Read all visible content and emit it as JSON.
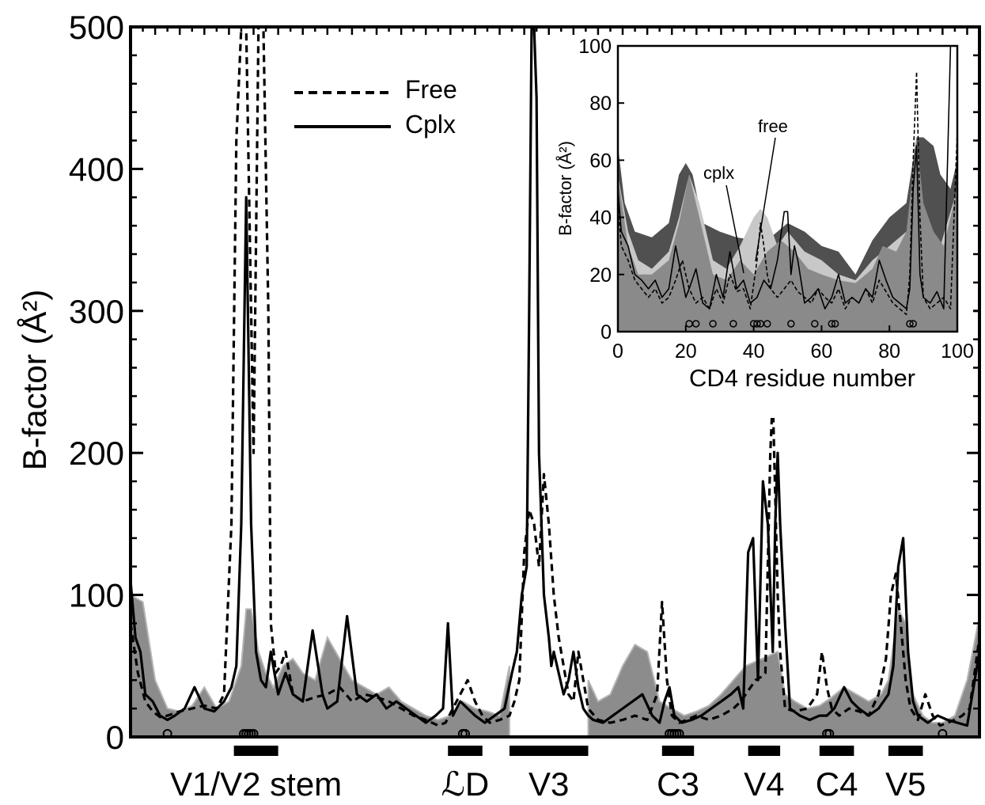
{
  "chart_data": [
    {
      "type": "line",
      "panel": "main",
      "ylabel": "B-factor (Å²)",
      "xlabel": "",
      "ylim": [
        0,
        500
      ],
      "yticks": [
        0,
        100,
        200,
        300,
        400,
        500
      ],
      "xlim": [
        0,
        345
      ],
      "legend": {
        "placement": "top-left",
        "entries": [
          {
            "label": "Free",
            "style": "dashed"
          },
          {
            "label": "Cplx",
            "style": "solid"
          }
        ]
      },
      "regions": [
        {
          "label": "V1/V2 stem",
          "x": [
            42,
            60
          ]
        },
        {
          "label": "ℒD",
          "x": [
            129,
            143
          ]
        },
        {
          "label": "V3",
          "x": [
            154,
            186
          ]
        },
        {
          "label": "C3",
          "x": [
            216,
            229
          ]
        },
        {
          "label": "V4",
          "x": [
            251,
            264
          ]
        },
        {
          "label": "C4",
          "x": [
            280,
            294
          ]
        },
        {
          "label": "V5",
          "x": [
            308,
            322
          ]
        }
      ],
      "contact_circles_x": [
        15,
        46,
        47,
        48,
        49,
        50,
        135,
        136,
        219,
        220,
        221,
        222,
        223,
        283,
        284,
        330
      ],
      "series": [
        {
          "name": "Free",
          "style": "dashed",
          "x": [
            0,
            3,
            6,
            9,
            12,
            15,
            20,
            25,
            30,
            35,
            38,
            41,
            43,
            45,
            47,
            49,
            50,
            52,
            54,
            56,
            57,
            59,
            61,
            63,
            66,
            70,
            75,
            80,
            85,
            90,
            95,
            100,
            105,
            110,
            115,
            120,
            125,
            128,
            131,
            134,
            137,
            140,
            143,
            146,
            150,
            154,
            156,
            158,
            160,
            162,
            164,
            166,
            168,
            170,
            172,
            174,
            176,
            178,
            180,
            182,
            184,
            186,
            190,
            195,
            200,
            205,
            210,
            214,
            216,
            218,
            220,
            223,
            226,
            230,
            235,
            240,
            245,
            248,
            250,
            252,
            254,
            256,
            258,
            260,
            261,
            262,
            263,
            264,
            266,
            270,
            275,
            279,
            281,
            283,
            285,
            288,
            292,
            296,
            300,
            304,
            307,
            309,
            311,
            313,
            315,
            317,
            320,
            323,
            326,
            329,
            332,
            335,
            338,
            341,
            345
          ],
          "values": [
            80,
            45,
            25,
            18,
            14,
            15,
            18,
            20,
            22,
            20,
            30,
            150,
            420,
            500,
            500,
            300,
            200,
            500,
            500,
            300,
            80,
            45,
            50,
            60,
            30,
            25,
            28,
            30,
            35,
            25,
            30,
            28,
            25,
            20,
            15,
            12,
            8,
            10,
            20,
            30,
            40,
            25,
            15,
            10,
            12,
            15,
            25,
            40,
            130,
            160,
            150,
            120,
            185,
            150,
            100,
            70,
            50,
            30,
            25,
            60,
            40,
            20,
            12,
            10,
            12,
            15,
            12,
            30,
            95,
            40,
            15,
            10,
            12,
            15,
            12,
            15,
            20,
            25,
            30,
            35,
            40,
            42,
            45,
            200,
            240,
            170,
            100,
            60,
            20,
            18,
            20,
            30,
            60,
            35,
            20,
            15,
            20,
            18,
            15,
            30,
            55,
            100,
            115,
            80,
            40,
            20,
            12,
            30,
            15,
            8,
            10,
            12,
            15,
            20,
            70
          ]
        },
        {
          "name": "Cplx",
          "style": "solid",
          "x": [
            0,
            2,
            4,
            6,
            9,
            12,
            15,
            18,
            22,
            26,
            30,
            34,
            38,
            41,
            43,
            45,
            47,
            49,
            51,
            53,
            55,
            57,
            60,
            63,
            66,
            70,
            74,
            78,
            80,
            84,
            88,
            92,
            96,
            100,
            104,
            108,
            112,
            116,
            120,
            124,
            127,
            129,
            131,
            134,
            137,
            140,
            144,
            148,
            152,
            155,
            157,
            159,
            161,
            162,
            163,
            164,
            165,
            166,
            168,
            170,
            171,
            172,
            174,
            176,
            178,
            180,
            182,
            184,
            186,
            188,
            192,
            196,
            200,
            204,
            208,
            212,
            215,
            217,
            219,
            221,
            224,
            228,
            232,
            236,
            240,
            244,
            247,
            249,
            251,
            253,
            255,
            257,
            259,
            261,
            262,
            263,
            264,
            266,
            268,
            272,
            276,
            280,
            283,
            286,
            290,
            293,
            296,
            300,
            304,
            308,
            310,
            312,
            314,
            316,
            318,
            320,
            324,
            328,
            332,
            336,
            340,
            345
          ],
          "values": [
            110,
            70,
            60,
            30,
            25,
            15,
            12,
            15,
            20,
            35,
            20,
            18,
            25,
            35,
            50,
            150,
            380,
            150,
            60,
            40,
            35,
            60,
            30,
            45,
            30,
            25,
            75,
            30,
            20,
            25,
            85,
            30,
            25,
            30,
            20,
            25,
            20,
            15,
            10,
            15,
            20,
            80,
            15,
            25,
            20,
            15,
            10,
            15,
            20,
            45,
            60,
            100,
            120,
            300,
            520,
            520,
            450,
            200,
            100,
            70,
            50,
            60,
            45,
            30,
            40,
            60,
            35,
            20,
            15,
            12,
            10,
            15,
            20,
            25,
            30,
            15,
            10,
            25,
            35,
            15,
            10,
            12,
            15,
            20,
            25,
            30,
            35,
            20,
            130,
            140,
            40,
            180,
            150,
            60,
            150,
            200,
            150,
            80,
            20,
            15,
            12,
            15,
            15,
            20,
            35,
            25,
            20,
            15,
            20,
            30,
            50,
            120,
            140,
            60,
            25,
            15,
            10,
            15,
            12,
            10,
            8,
            60
          ]
        },
        {
          "name": "",
          "style": "fill",
          "x": [
            0,
            5,
            10,
            15,
            20,
            25,
            30,
            35,
            40,
            45,
            47,
            49,
            52,
            55,
            58,
            62,
            66,
            70,
            75,
            80,
            85,
            90,
            95,
            100,
            105,
            110,
            115,
            120,
            125,
            130,
            135,
            140,
            145,
            150,
            154,
            186,
            190,
            195,
            200,
            205,
            210,
            215,
            220,
            225,
            230,
            235,
            240,
            245,
            250,
            263,
            266,
            270,
            275,
            280,
            285,
            290,
            295,
            300,
            305,
            308,
            310,
            312,
            315,
            318,
            322,
            326,
            330,
            335,
            340,
            345
          ],
          "values": [
            100,
            95,
            40,
            20,
            18,
            22,
            35,
            20,
            25,
            50,
            90,
            90,
            60,
            45,
            35,
            50,
            55,
            45,
            40,
            70,
            55,
            40,
            35,
            30,
            35,
            25,
            20,
            15,
            12,
            15,
            25,
            20,
            18,
            15,
            50,
            40,
            25,
            30,
            50,
            65,
            60,
            25,
            20,
            15,
            18,
            22,
            30,
            40,
            50,
            60,
            30,
            25,
            20,
            22,
            28,
            35,
            30,
            25,
            30,
            40,
            65,
            90,
            80,
            30,
            15,
            10,
            10,
            15,
            40,
            85
          ]
        }
      ]
    },
    {
      "type": "area",
      "panel": "inset",
      "xlabel": "CD4 residue number",
      "ylabel": "B-factor (Å²)",
      "xlim": [
        0,
        100
      ],
      "ylim": [
        0,
        100
      ],
      "xticks": [
        0,
        20,
        40,
        60,
        80,
        100
      ],
      "yticks": [
        0,
        20,
        40,
        60,
        80,
        100
      ],
      "annotations": [
        "free",
        "cplx"
      ],
      "contact_circles_x": [
        21,
        23,
        28,
        34,
        40,
        41,
        42,
        44,
        51,
        58,
        63,
        64,
        86,
        87
      ],
      "series": [
        {
          "name": "",
          "style": "dark-fill",
          "x": [
            0,
            2,
            5,
            10,
            15,
            18,
            20,
            22,
            25,
            30,
            35,
            40,
            45,
            50,
            55,
            60,
            65,
            70,
            75,
            80,
            85,
            88,
            90,
            93,
            95,
            98,
            100
          ],
          "values": [
            65,
            45,
            35,
            33,
            38,
            55,
            59,
            55,
            38,
            35,
            33,
            32,
            33,
            38,
            35,
            30,
            28,
            20,
            32,
            40,
            45,
            68,
            68,
            65,
            55,
            50,
            60
          ]
        },
        {
          "name": "",
          "style": "light-fill",
          "x": [
            0,
            3,
            6,
            10,
            15,
            18,
            21,
            24,
            28,
            32,
            36,
            40,
            42,
            44,
            47,
            50,
            55,
            60,
            65,
            70,
            75,
            80,
            85,
            88,
            91,
            95,
            100
          ],
          "values": [
            55,
            35,
            25,
            22,
            28,
            40,
            55,
            45,
            25,
            22,
            30,
            40,
            43,
            40,
            30,
            35,
            28,
            25,
            20,
            18,
            25,
            30,
            35,
            50,
            40,
            30,
            50
          ]
        },
        {
          "name": "",
          "style": "mid-fill",
          "x": [
            0,
            3,
            6,
            10,
            15,
            18,
            21,
            24,
            28,
            32,
            36,
            40,
            44,
            48,
            52,
            56,
            60,
            65,
            70,
            75,
            78,
            82,
            85,
            88,
            90,
            93,
            96,
            100
          ],
          "values": [
            55,
            30,
            20,
            20,
            25,
            38,
            55,
            40,
            20,
            18,
            25,
            20,
            28,
            32,
            28,
            22,
            20,
            18,
            17,
            22,
            30,
            28,
            35,
            68,
            45,
            35,
            30,
            50
          ]
        },
        {
          "name": "",
          "style": "dashed",
          "x": [
            0,
            1,
            3,
            5,
            7,
            9,
            11,
            13,
            15,
            17,
            19,
            21,
            23,
            25,
            27,
            29,
            31,
            33,
            35,
            37,
            39,
            41,
            42,
            43,
            44,
            45,
            47,
            49,
            51,
            53,
            55,
            57,
            59,
            61,
            63,
            65,
            67,
            69,
            71,
            73,
            75,
            77,
            79,
            81,
            83,
            85,
            86,
            87,
            88,
            89,
            90,
            92,
            94,
            96,
            98,
            100
          ],
          "values": [
            45,
            30,
            25,
            18,
            15,
            12,
            15,
            10,
            12,
            18,
            25,
            15,
            10,
            12,
            8,
            15,
            10,
            20,
            14,
            15,
            8,
            25,
            38,
            30,
            20,
            15,
            12,
            15,
            18,
            14,
            12,
            10,
            15,
            12,
            10,
            15,
            8,
            12,
            10,
            15,
            10,
            18,
            14,
            10,
            8,
            6,
            20,
            60,
            91,
            40,
            12,
            8,
            10,
            12,
            8,
            70
          ]
        },
        {
          "name": "",
          "style": "solid",
          "x": [
            0,
            1,
            3,
            5,
            7,
            9,
            11,
            13,
            15,
            17,
            19,
            20,
            21,
            23,
            25,
            27,
            29,
            31,
            33,
            35,
            37,
            39,
            41,
            43,
            45,
            47,
            49,
            50,
            51,
            52,
            53,
            55,
            57,
            59,
            61,
            63,
            65,
            67,
            69,
            71,
            73,
            75,
            77,
            79,
            81,
            83,
            85,
            86,
            87,
            88,
            89,
            90,
            92,
            94,
            96,
            98,
            99,
            100
          ],
          "values": [
            50,
            35,
            30,
            20,
            18,
            15,
            18,
            12,
            15,
            30,
            18,
            12,
            15,
            22,
            10,
            8,
            20,
            12,
            28,
            15,
            18,
            10,
            12,
            18,
            15,
            25,
            42,
            42,
            20,
            30,
            25,
            10,
            12,
            15,
            8,
            12,
            20,
            10,
            12,
            10,
            15,
            12,
            25,
            18,
            12,
            10,
            8,
            15,
            50,
            65,
            20,
            12,
            10,
            14,
            8,
            100,
            100,
            100
          ]
        }
      ]
    }
  ]
}
